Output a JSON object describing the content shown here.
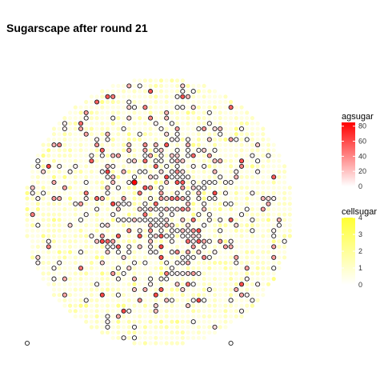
{
  "chart_data": {
    "type": "scatter",
    "title": "Sugarscape after round 21",
    "xlabel": "",
    "ylabel": "",
    "grid": false,
    "axes_visible": false,
    "grid_size": 50,
    "circle_radius": 25,
    "cell_fill_scale": {
      "name": "cellsugar",
      "low_color": "#ffffff",
      "high_color": "#ffff33",
      "range": [
        0,
        4
      ],
      "ticks": [
        "0",
        "1",
        "2",
        "3",
        "4"
      ]
    },
    "agent_fill_scale": {
      "name": "agsugar",
      "low_color": "#ffffff",
      "high_color": "#ff0000",
      "range": [
        0,
        85
      ],
      "ticks": [
        "0",
        "20",
        "40",
        "60",
        "80"
      ]
    },
    "legend_position": "right",
    "agent_count_approx": 420,
    "max_agent_x": 20,
    "max_agent_y": 30,
    "max_agent_sugar": 85,
    "outlier_points": [
      {
        "x": 0,
        "y": 0
      },
      {
        "x": 38,
        "y": 0
      }
    ]
  }
}
